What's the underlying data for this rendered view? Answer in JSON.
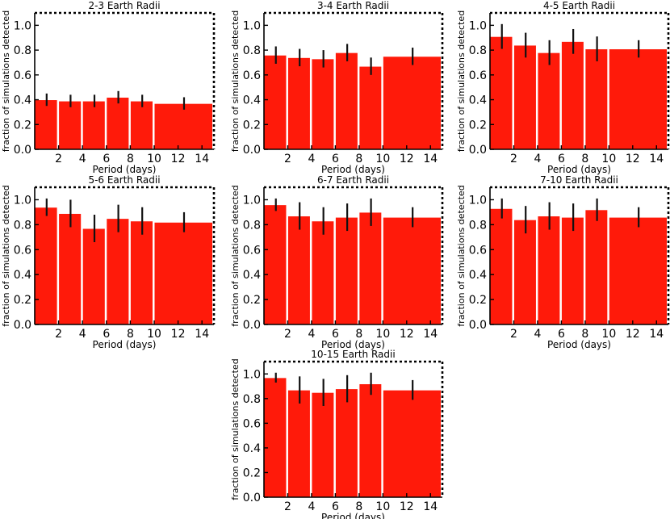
{
  "chart_data": [
    {
      "type": "bar",
      "title": "2-3 Earth Radii",
      "xlabel": "Period (days)",
      "ylabel": "fraction of simulations detected",
      "xlim": [
        0,
        15
      ],
      "ylim": [
        0,
        1.1
      ],
      "xticks": [
        2,
        4,
        6,
        8,
        10,
        12,
        14
      ],
      "yticks": [
        0.0,
        0.2,
        0.4,
        0.6,
        0.8,
        1.0
      ],
      "bar_color": "#ff1a0a",
      "bars": [
        {
          "x0": 0,
          "x1": 2,
          "value": 0.4,
          "err": 0.05
        },
        {
          "x0": 2,
          "x1": 4,
          "value": 0.39,
          "err": 0.05
        },
        {
          "x0": 4,
          "x1": 6,
          "value": 0.39,
          "err": 0.05
        },
        {
          "x0": 6,
          "x1": 8,
          "value": 0.42,
          "err": 0.05
        },
        {
          "x0": 8,
          "x1": 10,
          "value": 0.39,
          "err": 0.05
        },
        {
          "x0": 10,
          "x1": 15,
          "value": 0.37,
          "err": 0.05
        }
      ]
    },
    {
      "type": "bar",
      "title": "3-4 Earth Radii",
      "xlabel": "Period (days)",
      "ylabel": "fraction of simulations detected",
      "xlim": [
        0,
        15
      ],
      "ylim": [
        0,
        1.1
      ],
      "xticks": [
        2,
        4,
        6,
        8,
        10,
        12,
        14
      ],
      "yticks": [
        0.0,
        0.2,
        0.4,
        0.6,
        0.8,
        1.0
      ],
      "bar_color": "#ff1a0a",
      "bars": [
        {
          "x0": 0,
          "x1": 2,
          "value": 0.76,
          "err": 0.07
        },
        {
          "x0": 2,
          "x1": 4,
          "value": 0.74,
          "err": 0.07
        },
        {
          "x0": 4,
          "x1": 6,
          "value": 0.73,
          "err": 0.07
        },
        {
          "x0": 6,
          "x1": 8,
          "value": 0.78,
          "err": 0.07
        },
        {
          "x0": 8,
          "x1": 10,
          "value": 0.67,
          "err": 0.07
        },
        {
          "x0": 10,
          "x1": 15,
          "value": 0.75,
          "err": 0.07
        }
      ]
    },
    {
      "type": "bar",
      "title": "4-5 Earth Radii",
      "xlabel": "Period (days)",
      "ylabel": "fraction of simulations detected",
      "xlim": [
        0,
        15
      ],
      "ylim": [
        0,
        1.1
      ],
      "xticks": [
        2,
        4,
        6,
        8,
        10,
        12,
        14
      ],
      "yticks": [
        0.0,
        0.2,
        0.4,
        0.6,
        0.8,
        1.0
      ],
      "bar_color": "#ff1a0a",
      "bars": [
        {
          "x0": 0,
          "x1": 2,
          "value": 0.91,
          "err": 0.1
        },
        {
          "x0": 2,
          "x1": 4,
          "value": 0.84,
          "err": 0.1
        },
        {
          "x0": 4,
          "x1": 6,
          "value": 0.78,
          "err": 0.1
        },
        {
          "x0": 6,
          "x1": 8,
          "value": 0.87,
          "err": 0.1
        },
        {
          "x0": 8,
          "x1": 10,
          "value": 0.81,
          "err": 0.1
        },
        {
          "x0": 10,
          "x1": 15,
          "value": 0.81,
          "err": 0.07
        }
      ]
    },
    {
      "type": "bar",
      "title": "5-6 Earth Radii",
      "xlabel": "Period (days)",
      "ylabel": "fraction of simulations detected",
      "xlim": [
        0,
        15
      ],
      "ylim": [
        0,
        1.1
      ],
      "xticks": [
        2,
        4,
        6,
        8,
        10,
        12,
        14
      ],
      "yticks": [
        0.0,
        0.2,
        0.4,
        0.6,
        0.8,
        1.0
      ],
      "bar_color": "#ff1a0a",
      "bars": [
        {
          "x0": 0,
          "x1": 2,
          "value": 0.94,
          "err": 0.07
        },
        {
          "x0": 2,
          "x1": 4,
          "value": 0.89,
          "err": 0.11
        },
        {
          "x0": 4,
          "x1": 6,
          "value": 0.77,
          "err": 0.11
        },
        {
          "x0": 6,
          "x1": 8,
          "value": 0.85,
          "err": 0.11
        },
        {
          "x0": 8,
          "x1": 10,
          "value": 0.83,
          "err": 0.11
        },
        {
          "x0": 10,
          "x1": 15,
          "value": 0.82,
          "err": 0.08
        }
      ]
    },
    {
      "type": "bar",
      "title": "6-7 Earth Radii",
      "xlabel": "Period (days)",
      "ylabel": "fraction of simulations detected",
      "xlim": [
        0,
        15
      ],
      "ylim": [
        0,
        1.1
      ],
      "xticks": [
        2,
        4,
        6,
        8,
        10,
        12,
        14
      ],
      "yticks": [
        0.0,
        0.2,
        0.4,
        0.6,
        0.8,
        1.0
      ],
      "bar_color": "#ff1a0a",
      "bars": [
        {
          "x0": 0,
          "x1": 2,
          "value": 0.96,
          "err": 0.05
        },
        {
          "x0": 2,
          "x1": 4,
          "value": 0.87,
          "err": 0.11
        },
        {
          "x0": 4,
          "x1": 6,
          "value": 0.83,
          "err": 0.11
        },
        {
          "x0": 6,
          "x1": 8,
          "value": 0.86,
          "err": 0.11
        },
        {
          "x0": 8,
          "x1": 10,
          "value": 0.9,
          "err": 0.11
        },
        {
          "x0": 10,
          "x1": 15,
          "value": 0.86,
          "err": 0.08
        }
      ]
    },
    {
      "type": "bar",
      "title": "7-10 Earth Radii",
      "xlabel": "Period (days)",
      "ylabel": "fraction of simulations detected",
      "xlim": [
        0,
        15
      ],
      "ylim": [
        0,
        1.1
      ],
      "xticks": [
        2,
        4,
        6,
        8,
        10,
        12,
        14
      ],
      "yticks": [
        0.0,
        0.2,
        0.4,
        0.6,
        0.8,
        1.0
      ],
      "bar_color": "#ff1a0a",
      "bars": [
        {
          "x0": 0,
          "x1": 2,
          "value": 0.93,
          "err": 0.08
        },
        {
          "x0": 2,
          "x1": 4,
          "value": 0.84,
          "err": 0.11
        },
        {
          "x0": 4,
          "x1": 6,
          "value": 0.87,
          "err": 0.11
        },
        {
          "x0": 6,
          "x1": 8,
          "value": 0.86,
          "err": 0.11
        },
        {
          "x0": 8,
          "x1": 10,
          "value": 0.92,
          "err": 0.09
        },
        {
          "x0": 10,
          "x1": 15,
          "value": 0.86,
          "err": 0.08
        }
      ]
    },
    {
      "type": "bar",
      "title": "10-15 Earth Radii",
      "xlabel": "Period (days)",
      "ylabel": "fraction of simulations detected",
      "xlim": [
        0,
        15
      ],
      "ylim": [
        0,
        1.1
      ],
      "xticks": [
        2,
        4,
        6,
        8,
        10,
        12,
        14
      ],
      "yticks": [
        0.0,
        0.2,
        0.4,
        0.6,
        0.8,
        1.0
      ],
      "bar_color": "#ff1a0a",
      "bars": [
        {
          "x0": 0,
          "x1": 2,
          "value": 0.97,
          "err": 0.04
        },
        {
          "x0": 2,
          "x1": 4,
          "value": 0.87,
          "err": 0.11
        },
        {
          "x0": 4,
          "x1": 6,
          "value": 0.85,
          "err": 0.11
        },
        {
          "x0": 6,
          "x1": 8,
          "value": 0.88,
          "err": 0.11
        },
        {
          "x0": 8,
          "x1": 10,
          "value": 0.92,
          "err": 0.09
        },
        {
          "x0": 10,
          "x1": 15,
          "value": 0.87,
          "err": 0.08
        }
      ]
    }
  ]
}
